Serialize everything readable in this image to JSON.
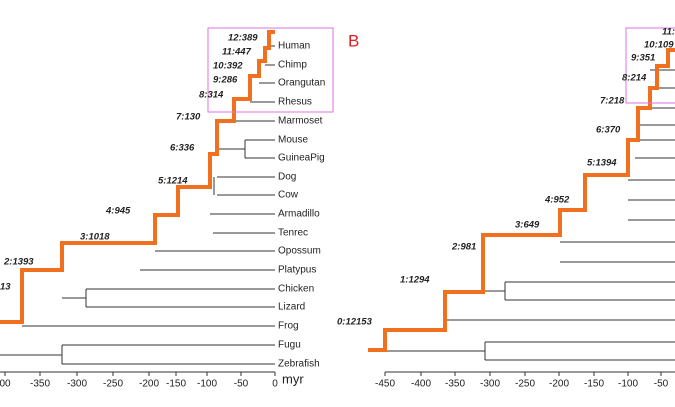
{
  "panel_a": {
    "species": [
      "Human",
      "Chimp",
      "Orangutan",
      "Rhesus",
      "Marmoset",
      "Mouse",
      "GuineaPig",
      "Dog",
      "Cow",
      "Armadillo",
      "Tenrec",
      "Opossum",
      "Platypus",
      "Chicken",
      "Lizard",
      "Frog",
      "Fugu",
      "Zebrafish"
    ],
    "nodes": [
      "12:389",
      "11:447",
      "10:392",
      "9:286",
      "8:314",
      "7:130",
      "6:336",
      "5:1214",
      "4:945",
      "3:1018",
      "2:1393",
      "13"
    ],
    "ticks": [
      "00",
      "-350",
      "-300",
      "-250",
      "-200",
      "-150",
      "-100",
      "-50",
      "0"
    ],
    "axis_label": "myr"
  },
  "panel_b": {
    "label": "B",
    "nodes": [
      "11:",
      "10:109",
      "9:351",
      "8:214",
      "7:218",
      "6:370",
      "5:1394",
      "4:952",
      "3:649",
      "2:981",
      "1:1294",
      "0:12153"
    ],
    "ticks": [
      "-450",
      "-400",
      "-350",
      "-300",
      "-250",
      "-200",
      "-150",
      "-100",
      "-50"
    ]
  }
}
